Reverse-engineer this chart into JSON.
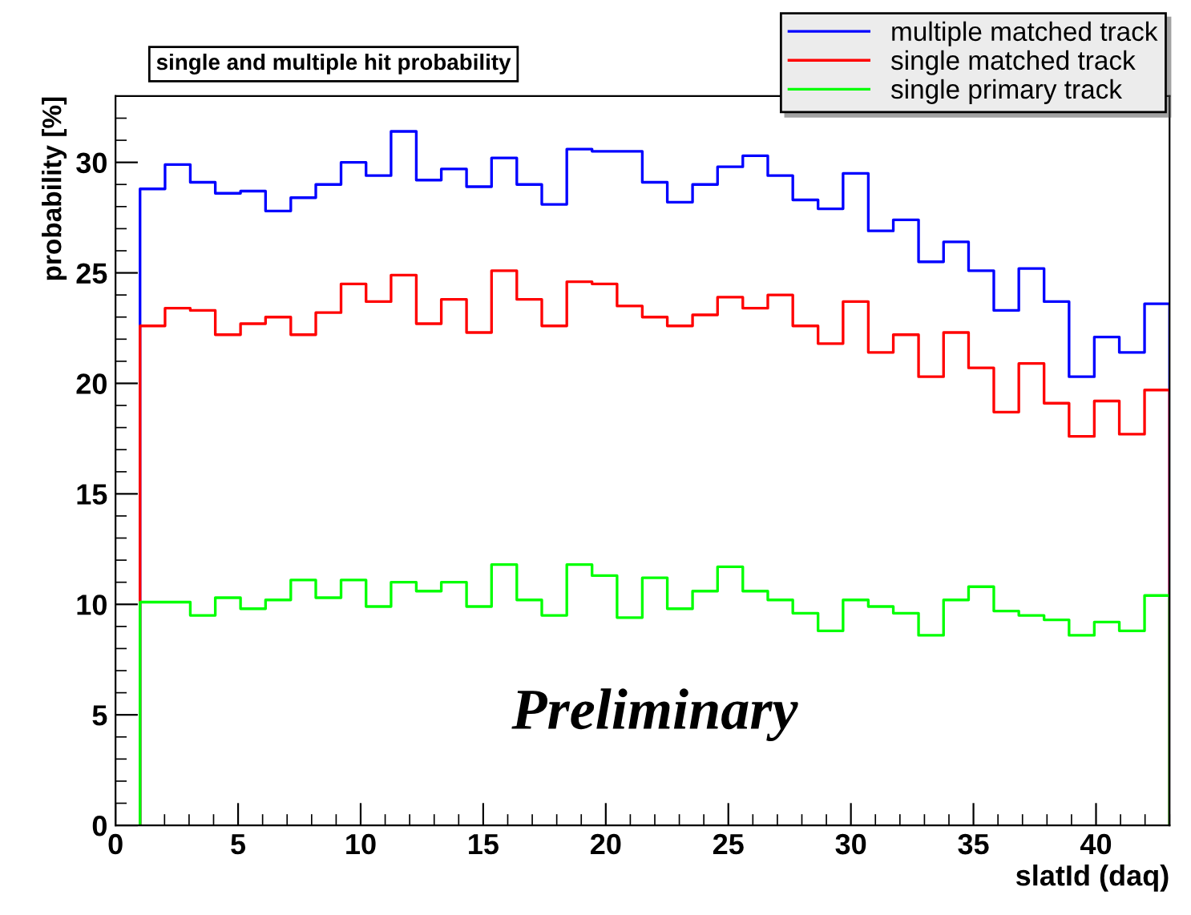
{
  "chart_data": {
    "type": "histogram",
    "title": "single and multiple hit probability",
    "xlabel": "slatId (daq)",
    "ylabel": "probability [%]",
    "bins": [
      1,
      2.02,
      3.05,
      4.07,
      5.1,
      6.12,
      7.15,
      8.17,
      9.2,
      10.22,
      11.24,
      12.27,
      13.29,
      14.32,
      15.34,
      16.37,
      17.39,
      18.41,
      19.44,
      20.46,
      21.49,
      22.51,
      23.54,
      24.56,
      25.59,
      26.61,
      27.63,
      28.66,
      29.68,
      30.71,
      31.73,
      32.76,
      33.78,
      34.8,
      35.83,
      36.85,
      37.88,
      38.9,
      39.93,
      40.95,
      41.98,
      43
    ],
    "series": [
      {
        "name": "multiple matched track",
        "color": "#0000ff",
        "values": [
          28.8,
          29.9,
          29.1,
          28.6,
          28.7,
          27.8,
          28.4,
          29.0,
          30.0,
          29.4,
          31.4,
          29.2,
          29.7,
          28.9,
          30.2,
          29.0,
          28.1,
          30.6,
          30.5,
          30.5,
          29.1,
          28.2,
          29.0,
          29.8,
          30.3,
          29.4,
          28.3,
          27.9,
          29.5,
          26.9,
          27.4,
          25.5,
          26.4,
          25.1,
          23.3,
          25.2,
          23.7,
          20.3,
          22.1,
          21.4,
          23.6
        ]
      },
      {
        "name": "single matched track",
        "color": "#ff0000",
        "values": [
          22.6,
          23.4,
          23.3,
          22.2,
          22.7,
          23.0,
          22.2,
          23.2,
          24.5,
          23.7,
          24.9,
          22.7,
          23.8,
          22.3,
          25.1,
          23.8,
          22.6,
          24.6,
          24.5,
          23.5,
          23.0,
          22.6,
          23.1,
          23.9,
          23.4,
          24.0,
          22.6,
          21.8,
          23.7,
          21.4,
          22.2,
          20.3,
          22.3,
          20.7,
          18.7,
          20.9,
          19.1,
          17.6,
          19.2,
          17.7,
          19.7
        ]
      },
      {
        "name": "single primary track",
        "color": "#00ff00",
        "values": [
          10.1,
          10.1,
          9.5,
          10.3,
          9.8,
          10.2,
          11.1,
          10.3,
          11.1,
          9.9,
          11.0,
          10.6,
          11.0,
          9.9,
          11.8,
          10.2,
          9.5,
          11.8,
          11.3,
          9.4,
          11.2,
          9.8,
          10.6,
          11.7,
          10.6,
          10.2,
          9.6,
          8.8,
          10.2,
          9.9,
          9.6,
          8.6,
          10.2,
          10.8,
          9.7,
          9.5,
          9.3,
          8.6,
          9.2,
          8.8,
          10.4
        ]
      }
    ],
    "xlim": [
      0,
      43
    ],
    "xticks": [
      0,
      5,
      10,
      15,
      20,
      25,
      30,
      35,
      40
    ],
    "ylim": [
      0,
      33
    ],
    "yticks": [
      0,
      5,
      10,
      15,
      20,
      25,
      30
    ],
    "annotations": [
      "Preliminary"
    ],
    "legend": "top right",
    "grid": false
  }
}
